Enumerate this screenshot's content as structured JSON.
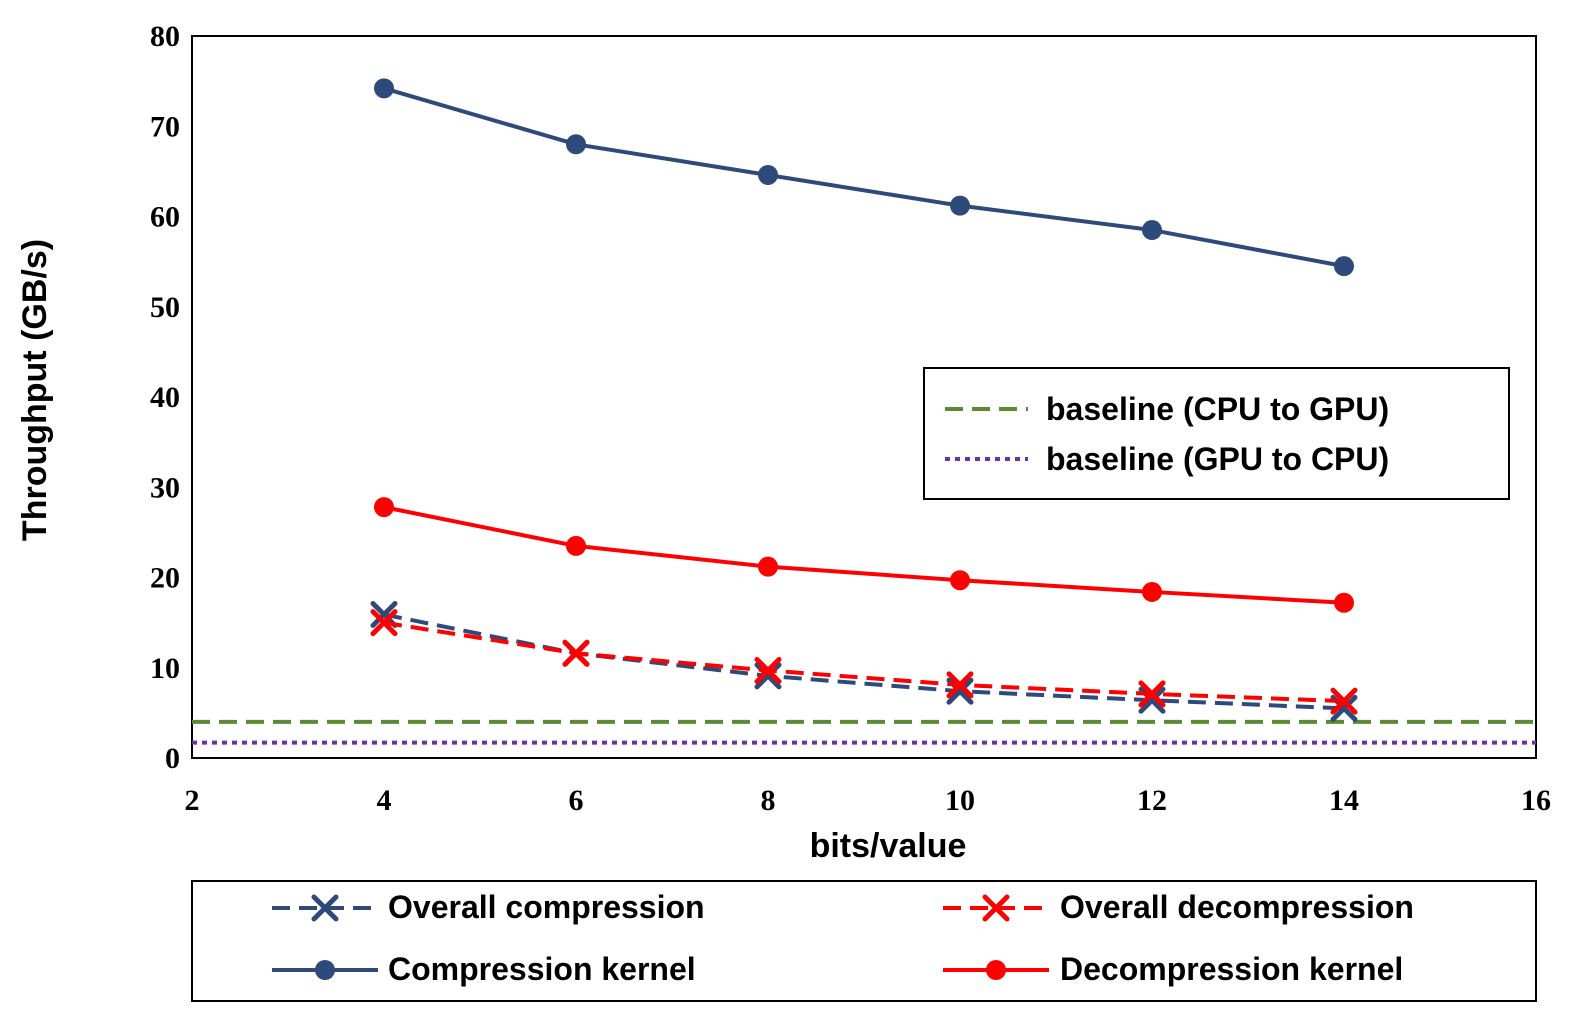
{
  "chart_data": {
    "type": "line",
    "title": "",
    "xlabel": "bits/value",
    "ylabel": "Throughput (GB/s)",
    "xlim": [
      2,
      16
    ],
    "ylim": [
      0,
      80
    ],
    "xticks": [
      2,
      4,
      6,
      8,
      10,
      12,
      14,
      16
    ],
    "yticks": [
      0,
      10,
      20,
      30,
      40,
      50,
      60,
      70,
      80
    ],
    "x": [
      4,
      6,
      8,
      10,
      12,
      14
    ],
    "series": [
      {
        "name": "Compression kernel",
        "values": [
          74.2,
          68.0,
          64.6,
          61.2,
          58.5,
          54.5
        ],
        "color": "#2e4a7a",
        "style": "solid",
        "marker": "circle"
      },
      {
        "name": "Decompression kernel",
        "values": [
          27.8,
          23.5,
          21.2,
          19.7,
          18.4,
          17.2
        ],
        "color": "#ff0000",
        "style": "solid",
        "marker": "circle"
      },
      {
        "name": "Overall compression",
        "values": [
          15.9,
          11.6,
          9.1,
          7.4,
          6.4,
          5.5
        ],
        "color": "#2e4a7a",
        "style": "dashed",
        "marker": "x"
      },
      {
        "name": "Overall decompression",
        "values": [
          15.0,
          11.6,
          9.7,
          8.1,
          7.1,
          6.3
        ],
        "color": "#ff0000",
        "style": "dashed",
        "marker": "x"
      }
    ],
    "baselines": [
      {
        "name": "baseline (CPU to GPU)",
        "value": 4.0,
        "color": "#5b8a32",
        "style": "dashed"
      },
      {
        "name": "baseline (GPU to CPU)",
        "value": 1.7,
        "color": "#7030a0",
        "style": "dotted"
      }
    ],
    "legend_inner": {
      "placement": "center-right",
      "entries": [
        "baseline (CPU to GPU)",
        "baseline (GPU to CPU)"
      ]
    },
    "legend_outer": {
      "placement": "bottom",
      "entries": [
        "Overall compression",
        "Overall decompression",
        "Compression kernel",
        "Decompression kernel"
      ]
    }
  }
}
